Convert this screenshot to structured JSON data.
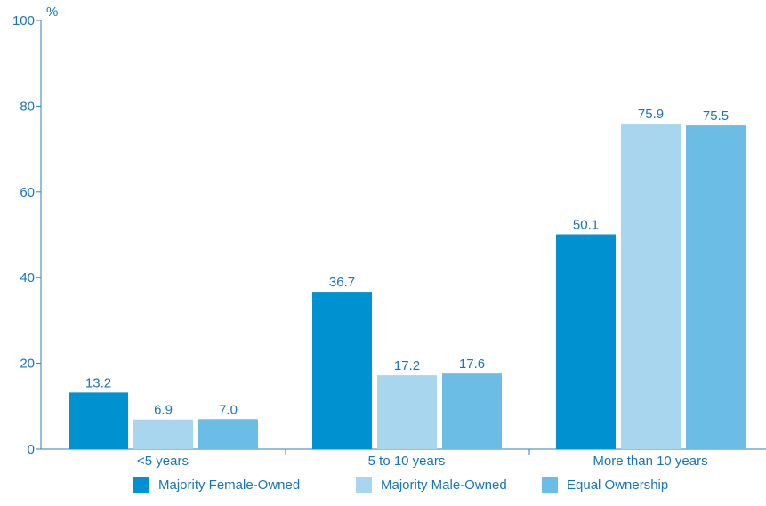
{
  "chart_data": {
    "type": "bar",
    "unit_label": "%",
    "categories": [
      "<5 years",
      "5 to 10 years",
      "More than 10 years"
    ],
    "series": [
      {
        "name": "Majority Female-Owned",
        "color": "#0092d0",
        "values": [
          13.2,
          36.7,
          50.1
        ],
        "labels": [
          "13.2",
          "36.7",
          "50.1"
        ]
      },
      {
        "name": "Majority Male-Owned",
        "color": "#a8d6ef",
        "values": [
          6.9,
          17.2,
          75.9
        ],
        "labels": [
          "6.9",
          "17.2",
          "75.9"
        ]
      },
      {
        "name": "Equal Ownership",
        "color": "#6cbde6",
        "values": [
          7.0,
          17.6,
          75.5
        ],
        "labels": [
          "7.0",
          "17.6",
          "75.5"
        ]
      }
    ],
    "ylim": [
      0,
      100
    ],
    "yticks": [
      0,
      20,
      40,
      60,
      80,
      100
    ],
    "grid": false,
    "legend_position": "bottom"
  }
}
